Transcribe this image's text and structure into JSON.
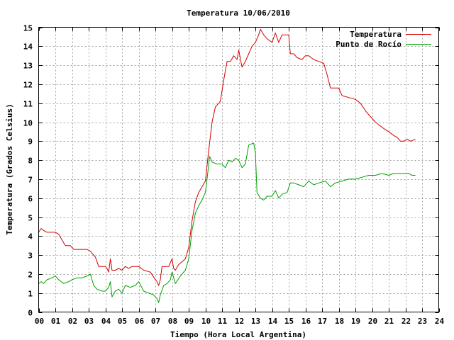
{
  "chart_data": {
    "type": "line",
    "title": "Temperatura 10/06/2010",
    "xlabel": "Tiempo (Hora Local Argentina)",
    "ylabel": "Temperatura (Grados Celsius)",
    "xlim": [
      0,
      24
    ],
    "ylim": [
      0,
      15
    ],
    "x_ticks": [
      "00",
      "01",
      "02",
      "03",
      "04",
      "05",
      "06",
      "07",
      "08",
      "09",
      "10",
      "11",
      "12",
      "13",
      "14",
      "15",
      "16",
      "17",
      "18",
      "19",
      "20",
      "21",
      "22",
      "23",
      "24"
    ],
    "y_ticks": [
      0,
      1,
      2,
      3,
      4,
      5,
      6,
      7,
      8,
      9,
      10,
      11,
      12,
      13,
      14,
      15
    ],
    "grid": true,
    "legend_position": "top-right",
    "series": [
      {
        "name": "Temperatura",
        "color": "#d40000",
        "points": [
          [
            0.0,
            4.2
          ],
          [
            0.15,
            4.4
          ],
          [
            0.3,
            4.3
          ],
          [
            0.5,
            4.2
          ],
          [
            1.0,
            4.2
          ],
          [
            1.2,
            4.1
          ],
          [
            1.4,
            3.8
          ],
          [
            1.6,
            3.5
          ],
          [
            1.9,
            3.5
          ],
          [
            2.1,
            3.3
          ],
          [
            2.5,
            3.3
          ],
          [
            2.9,
            3.3
          ],
          [
            3.1,
            3.2
          ],
          [
            3.4,
            2.9
          ],
          [
            3.6,
            2.4
          ],
          [
            4.0,
            2.4
          ],
          [
            4.1,
            2.3
          ],
          [
            4.2,
            2.1
          ],
          [
            4.3,
            2.8
          ],
          [
            4.4,
            2.2
          ],
          [
            4.6,
            2.2
          ],
          [
            4.8,
            2.3
          ],
          [
            5.0,
            2.2
          ],
          [
            5.2,
            2.4
          ],
          [
            5.4,
            2.3
          ],
          [
            5.6,
            2.4
          ],
          [
            6.0,
            2.4
          ],
          [
            6.3,
            2.2
          ],
          [
            6.7,
            2.1
          ],
          [
            7.0,
            1.7
          ],
          [
            7.1,
            1.6
          ],
          [
            7.2,
            1.4
          ],
          [
            7.3,
            1.7
          ],
          [
            7.4,
            2.4
          ],
          [
            7.8,
            2.4
          ],
          [
            8.0,
            2.8
          ],
          [
            8.1,
            2.3
          ],
          [
            8.2,
            2.2
          ],
          [
            8.4,
            2.5
          ],
          [
            8.8,
            2.8
          ],
          [
            9.0,
            3.4
          ],
          [
            9.2,
            4.8
          ],
          [
            9.4,
            5.8
          ],
          [
            9.6,
            6.3
          ],
          [
            9.8,
            6.6
          ],
          [
            10.0,
            6.9
          ],
          [
            10.2,
            8.5
          ],
          [
            10.4,
            10.0
          ],
          [
            10.6,
            10.8
          ],
          [
            10.9,
            11.1
          ],
          [
            11.1,
            12.2
          ],
          [
            11.3,
            13.2
          ],
          [
            11.5,
            13.2
          ],
          [
            11.7,
            13.5
          ],
          [
            11.9,
            13.3
          ],
          [
            12.0,
            13.8
          ],
          [
            12.2,
            12.9
          ],
          [
            12.4,
            13.2
          ],
          [
            12.6,
            13.6
          ],
          [
            12.8,
            14.0
          ],
          [
            13.0,
            14.2
          ],
          [
            13.2,
            14.6
          ],
          [
            13.3,
            14.9
          ],
          [
            13.5,
            14.6
          ],
          [
            13.7,
            14.4
          ],
          [
            14.0,
            14.2
          ],
          [
            14.2,
            14.7
          ],
          [
            14.4,
            14.2
          ],
          [
            14.6,
            14.6
          ],
          [
            14.8,
            14.6
          ],
          [
            15.0,
            14.6
          ],
          [
            15.1,
            13.6
          ],
          [
            15.3,
            13.6
          ],
          [
            15.5,
            13.4
          ],
          [
            15.8,
            13.3
          ],
          [
            16.0,
            13.5
          ],
          [
            16.2,
            13.5
          ],
          [
            16.5,
            13.3
          ],
          [
            16.8,
            13.2
          ],
          [
            17.1,
            13.1
          ],
          [
            17.3,
            12.5
          ],
          [
            17.5,
            11.8
          ],
          [
            18.0,
            11.8
          ],
          [
            18.2,
            11.4
          ],
          [
            18.6,
            11.3
          ],
          [
            19.0,
            11.2
          ],
          [
            19.3,
            11.0
          ],
          [
            19.6,
            10.6
          ],
          [
            19.9,
            10.3
          ],
          [
            20.2,
            10.0
          ],
          [
            20.5,
            9.8
          ],
          [
            20.8,
            9.6
          ],
          [
            21.0,
            9.5
          ],
          [
            21.3,
            9.3
          ],
          [
            21.5,
            9.2
          ],
          [
            21.7,
            9.0
          ],
          [
            21.9,
            9.0
          ],
          [
            22.1,
            9.1
          ],
          [
            22.3,
            9.0
          ],
          [
            22.6,
            9.1
          ]
        ]
      },
      {
        "name": "Punto de Rocío",
        "color": "#00a000",
        "points": [
          [
            0.0,
            1.5
          ],
          [
            0.15,
            1.6
          ],
          [
            0.3,
            1.5
          ],
          [
            0.5,
            1.7
          ],
          [
            0.8,
            1.8
          ],
          [
            1.0,
            1.9
          ],
          [
            1.2,
            1.7
          ],
          [
            1.5,
            1.5
          ],
          [
            1.8,
            1.6
          ],
          [
            2.0,
            1.7
          ],
          [
            2.3,
            1.8
          ],
          [
            2.6,
            1.8
          ],
          [
            2.9,
            1.9
          ],
          [
            3.1,
            2.0
          ],
          [
            3.3,
            1.4
          ],
          [
            3.5,
            1.2
          ],
          [
            3.8,
            1.1
          ],
          [
            4.0,
            1.1
          ],
          [
            4.2,
            1.3
          ],
          [
            4.3,
            1.6
          ],
          [
            4.4,
            0.8
          ],
          [
            4.6,
            1.1
          ],
          [
            4.8,
            1.2
          ],
          [
            5.0,
            1.0
          ],
          [
            5.2,
            1.4
          ],
          [
            5.5,
            1.3
          ],
          [
            5.8,
            1.4
          ],
          [
            6.0,
            1.6
          ],
          [
            6.3,
            1.1
          ],
          [
            6.6,
            1.0
          ],
          [
            6.9,
            0.9
          ],
          [
            7.1,
            0.7
          ],
          [
            7.2,
            0.5
          ],
          [
            7.3,
            0.9
          ],
          [
            7.5,
            1.4
          ],
          [
            7.7,
            1.5
          ],
          [
            7.9,
            1.7
          ],
          [
            8.0,
            2.1
          ],
          [
            8.2,
            1.5
          ],
          [
            8.5,
            1.9
          ],
          [
            8.8,
            2.2
          ],
          [
            9.0,
            2.8
          ],
          [
            9.2,
            4.3
          ],
          [
            9.4,
            5.2
          ],
          [
            9.6,
            5.6
          ],
          [
            9.8,
            5.9
          ],
          [
            10.0,
            6.3
          ],
          [
            10.1,
            7.0
          ],
          [
            10.25,
            8.2
          ],
          [
            10.4,
            7.9
          ],
          [
            10.7,
            7.8
          ],
          [
            11.0,
            7.8
          ],
          [
            11.2,
            7.6
          ],
          [
            11.4,
            8.0
          ],
          [
            11.6,
            7.9
          ],
          [
            11.8,
            8.1
          ],
          [
            12.0,
            8.0
          ],
          [
            12.2,
            7.6
          ],
          [
            12.4,
            7.8
          ],
          [
            12.6,
            8.8
          ],
          [
            12.9,
            8.9
          ],
          [
            13.0,
            8.4
          ],
          [
            13.1,
            6.3
          ],
          [
            13.3,
            6.0
          ],
          [
            13.5,
            5.9
          ],
          [
            13.7,
            6.1
          ],
          [
            14.0,
            6.1
          ],
          [
            14.2,
            6.4
          ],
          [
            14.4,
            6.0
          ],
          [
            14.6,
            6.2
          ],
          [
            14.9,
            6.3
          ],
          [
            15.1,
            6.8
          ],
          [
            15.3,
            6.8
          ],
          [
            15.6,
            6.7
          ],
          [
            15.9,
            6.6
          ],
          [
            16.2,
            6.9
          ],
          [
            16.5,
            6.7
          ],
          [
            16.8,
            6.8
          ],
          [
            17.2,
            6.9
          ],
          [
            17.5,
            6.6
          ],
          [
            17.8,
            6.8
          ],
          [
            18.2,
            6.9
          ],
          [
            18.6,
            7.0
          ],
          [
            19.0,
            7.0
          ],
          [
            19.4,
            7.1
          ],
          [
            19.8,
            7.2
          ],
          [
            20.2,
            7.2
          ],
          [
            20.6,
            7.3
          ],
          [
            21.0,
            7.2
          ],
          [
            21.3,
            7.3
          ],
          [
            21.6,
            7.3
          ],
          [
            21.9,
            7.3
          ],
          [
            22.2,
            7.3
          ],
          [
            22.4,
            7.2
          ],
          [
            22.6,
            7.2
          ]
        ]
      }
    ]
  }
}
